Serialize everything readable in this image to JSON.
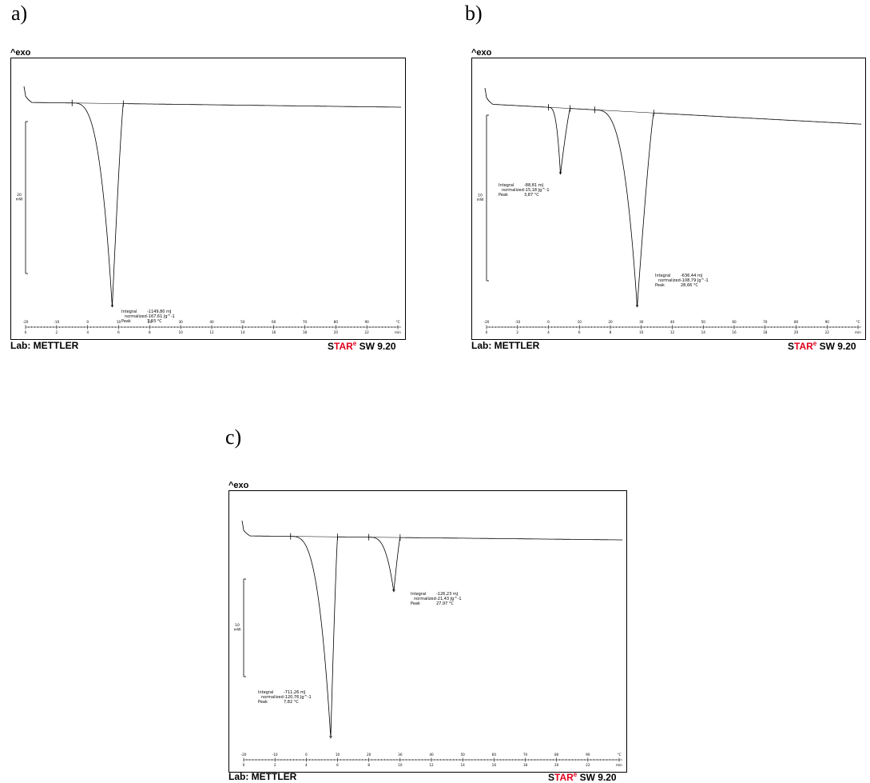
{
  "panels": [
    {
      "id": "a",
      "label": "a)",
      "exo_label": "^exo",
      "scale_bar": {
        "value": "20",
        "unit": "mW"
      },
      "footer_left": "Lab: METTLER",
      "footer_software": {
        "prefix": "S",
        "brand": "TAR",
        "mark": "e",
        "suffix": " SW 9.20"
      },
      "axis_temp": {
        "range": [
          -20,
          100
        ],
        "ticks": [
          "-20",
          "-10",
          "0",
          "10",
          "20",
          "30",
          "40",
          "50",
          "60",
          "70",
          "80",
          "90",
          "°C"
        ]
      },
      "axis_time": {
        "range": [
          0,
          24
        ],
        "ticks": [
          "0",
          "2",
          "4",
          "6",
          "8",
          "10",
          "12",
          "14",
          "16",
          "18",
          "20",
          "22",
          "min"
        ]
      },
      "baseline_markers_c": [
        -5.0,
        11.5
      ],
      "peaks": [
        {
          "integral_label": "Integral",
          "integral_value": "-1149,80 mJ",
          "normalized_label": "normalized",
          "normalized_value": "-167,61 Jg^-1",
          "peak_label": "Peak",
          "peak_value": "7,93 °C",
          "temp_c": 7.93,
          "start_c": -5.0,
          "end_c": 11.5,
          "depth": 1.0
        }
      ]
    },
    {
      "id": "b",
      "label": "b)",
      "exo_label": "^exo",
      "scale_bar": {
        "value": "10",
        "unit": "mW"
      },
      "footer_left": "Lab: METTLER",
      "footer_software": {
        "prefix": "S",
        "brand": "TAR",
        "mark": "e",
        "suffix": " SW 9.20"
      },
      "axis_temp": {
        "range": [
          -20,
          100
        ],
        "ticks": [
          "-20",
          "-10",
          "0",
          "10",
          "20",
          "30",
          "40",
          "50",
          "60",
          "70",
          "80",
          "90",
          "°C"
        ]
      },
      "axis_time": {
        "range": [
          0,
          24
        ],
        "ticks": [
          "0",
          "2",
          "4",
          "6",
          "8",
          "10",
          "12",
          "14",
          "16",
          "18",
          "20",
          "22",
          "min"
        ]
      },
      "baseline_markers_c": [
        0.0,
        7.0,
        15.0,
        34.0
      ],
      "peaks": [
        {
          "integral_label": "Integral",
          "integral_value": "-88,81 mJ",
          "normalized_label": "normalized",
          "normalized_value": "-15,18 Jg^-1",
          "peak_label": "Peak",
          "peak_value": "3,87 °C",
          "temp_c": 3.87,
          "start_c": 0.0,
          "end_c": 7.0,
          "depth": 0.34
        },
        {
          "integral_label": "Integral",
          "integral_value": "-636,44 mJ",
          "normalized_label": "normalized",
          "normalized_value": "-108,79 Jg^-1",
          "peak_label": "Peak",
          "peak_value": "28,66 °C",
          "temp_c": 28.66,
          "start_c": 15.0,
          "end_c": 34.0,
          "depth": 1.0
        }
      ]
    },
    {
      "id": "c",
      "label": "c)",
      "exo_label": "^exo",
      "scale_bar": {
        "value": "10",
        "unit": "mW"
      },
      "footer_left": "Lab: METTLER",
      "footer_software": {
        "prefix": "S",
        "brand": "TAR",
        "mark": "e",
        "suffix": " SW 9.20"
      },
      "axis_temp": {
        "range": [
          -20,
          100
        ],
        "ticks": [
          "-20",
          "-10",
          "0",
          "10",
          "20",
          "30",
          "40",
          "50",
          "60",
          "70",
          "80",
          "90",
          "°C"
        ]
      },
      "axis_time": {
        "range": [
          0,
          24
        ],
        "ticks": [
          "0",
          "2",
          "4",
          "6",
          "8",
          "10",
          "12",
          "14",
          "16",
          "18",
          "20",
          "22",
          "min"
        ]
      },
      "baseline_markers_c": [
        -5.0,
        10.0,
        20.0,
        30.0
      ],
      "peaks": [
        {
          "integral_label": "Integral",
          "integral_value": "-711,26 mJ",
          "normalized_label": "normalized",
          "normalized_value": "-120,76 Jg^-1",
          "peak_label": "Peak",
          "peak_value": "7,82 °C",
          "temp_c": 7.82,
          "start_c": -5.0,
          "end_c": 10.0,
          "depth": 1.0
        },
        {
          "integral_label": "Integral",
          "integral_value": "-126,23 mJ",
          "normalized_label": "normalized",
          "normalized_value": "-21,43 Jg^-1",
          "peak_label": "Peak",
          "peak_value": "27,97 °C",
          "temp_c": 27.97,
          "start_c": 20.0,
          "end_c": 30.0,
          "depth": 0.27
        }
      ]
    }
  ]
}
